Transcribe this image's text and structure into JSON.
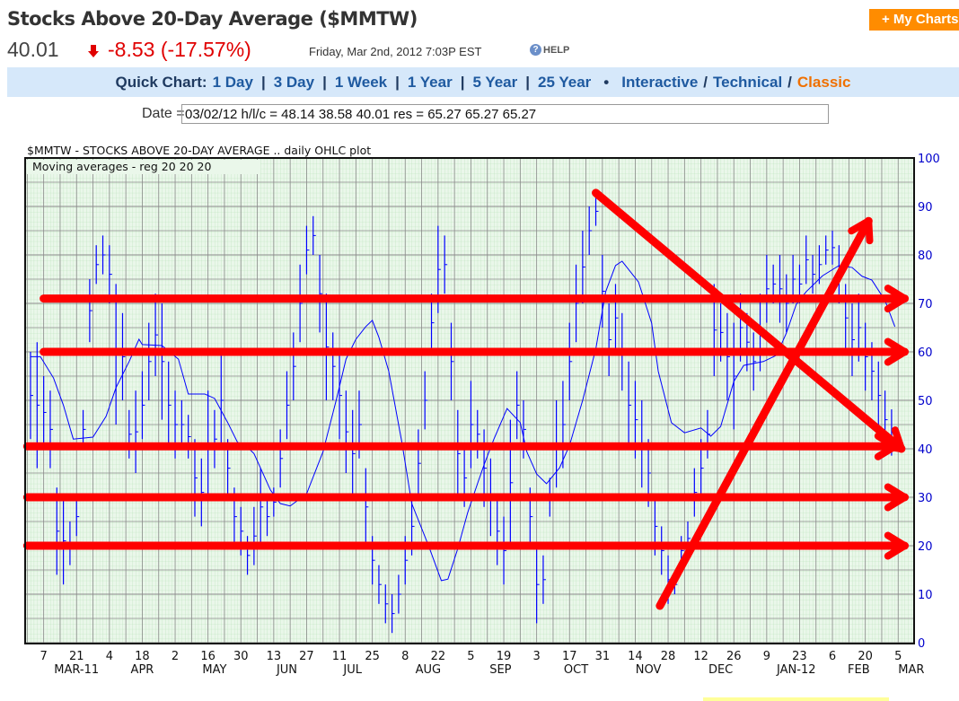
{
  "header": {
    "title": "Stocks Above 20-Day Average ($MMTW)",
    "my_chart_label": "+ My Charts"
  },
  "quote": {
    "price": "40.01",
    "change": "-8.53 (-17.57%)",
    "datetime": "Friday, Mar 2nd, 2012 7:03P EST",
    "help_label": "HELP",
    "down_color": "#e00000"
  },
  "quick_chart": {
    "label": "Quick Chart:",
    "links": [
      "1 Day",
      "3 Day",
      "1 Week",
      "1 Year",
      "5 Year",
      "25 Year"
    ],
    "bullet": "•",
    "styles": [
      "Interactive",
      "Technical",
      "Classic"
    ],
    "active_style": "Classic"
  },
  "date_field": {
    "label": "Date =",
    "value": "03/02/12 h/l/c = 48.14 38.58 40.01 res = 65.27 65.27 65.27"
  },
  "chart_data": {
    "type": "ohlc",
    "title": "$MMTW - STOCKS ABOVE 20-DAY AVERAGE .. daily OHLC plot",
    "subtitle": "Moving averages - reg   20  20  20",
    "x_unit": "weekday index from Mar 1 2011",
    "ylim": [
      0,
      100
    ],
    "yticks": [
      0,
      10,
      20,
      30,
      40,
      50,
      60,
      70,
      80,
      90,
      100
    ],
    "xticks": [
      {
        "x": 4,
        "label": "7"
      },
      {
        "x": 14,
        "label": "21"
      },
      {
        "x": 24,
        "label": "4"
      },
      {
        "x": 34,
        "label": "18"
      },
      {
        "x": 44,
        "label": "2"
      },
      {
        "x": 54,
        "label": "16"
      },
      {
        "x": 64,
        "label": "30"
      },
      {
        "x": 74,
        "label": "13"
      },
      {
        "x": 84,
        "label": "27"
      },
      {
        "x": 94,
        "label": "11"
      },
      {
        "x": 104,
        "label": "25"
      },
      {
        "x": 114,
        "label": "8"
      },
      {
        "x": 124,
        "label": "22"
      },
      {
        "x": 134,
        "label": "5"
      },
      {
        "x": 144,
        "label": "19"
      },
      {
        "x": 154,
        "label": "3"
      },
      {
        "x": 164,
        "label": "17"
      },
      {
        "x": 174,
        "label": "31"
      },
      {
        "x": 184,
        "label": "14"
      },
      {
        "x": 194,
        "label": "28"
      },
      {
        "x": 204,
        "label": "12"
      },
      {
        "x": 214,
        "label": "26"
      },
      {
        "x": 224,
        "label": "9"
      },
      {
        "x": 234,
        "label": "23"
      },
      {
        "x": 244,
        "label": "6"
      },
      {
        "x": 254,
        "label": "20"
      },
      {
        "x": 264,
        "label": "5"
      }
    ],
    "month_labels": [
      {
        "x": 14,
        "label": "MAR-11"
      },
      {
        "x": 34,
        "label": "APR"
      },
      {
        "x": 56,
        "label": "MAY"
      },
      {
        "x": 78,
        "label": "JUN"
      },
      {
        "x": 98,
        "label": "JUL"
      },
      {
        "x": 121,
        "label": "AUG"
      },
      {
        "x": 143,
        "label": "SEP"
      },
      {
        "x": 166,
        "label": "OCT"
      },
      {
        "x": 188,
        "label": "NOV"
      },
      {
        "x": 210,
        "label": "DEC"
      },
      {
        "x": 233,
        "label": "JAN-12"
      },
      {
        "x": 252,
        "label": "FEB"
      },
      {
        "x": 268,
        "label": "MAR"
      }
    ],
    "bars": [
      [
        0,
        60,
        42
      ],
      [
        2,
        62,
        36
      ],
      [
        4,
        55,
        40
      ],
      [
        6,
        52,
        36
      ],
      [
        8,
        32,
        14
      ],
      [
        10,
        30,
        12
      ],
      [
        12,
        25,
        16
      ],
      [
        14,
        30,
        22
      ],
      [
        16,
        48,
        40
      ],
      [
        18,
        75,
        62
      ],
      [
        20,
        82,
        74
      ],
      [
        22,
        84,
        76
      ],
      [
        24,
        82,
        70
      ],
      [
        26,
        74,
        45
      ],
      [
        28,
        68,
        50
      ],
      [
        30,
        48,
        38
      ],
      [
        32,
        52,
        35
      ],
      [
        34,
        56,
        42
      ],
      [
        36,
        66,
        50
      ],
      [
        38,
        72,
        55
      ],
      [
        40,
        70,
        46
      ],
      [
        42,
        58,
        40
      ],
      [
        44,
        52,
        38
      ],
      [
        46,
        50,
        40
      ],
      [
        48,
        47,
        38
      ],
      [
        50,
        42,
        26
      ],
      [
        52,
        38,
        24
      ],
      [
        54,
        52,
        30
      ],
      [
        56,
        48,
        36
      ],
      [
        58,
        60,
        40
      ],
      [
        60,
        42,
        30
      ],
      [
        62,
        32,
        20
      ],
      [
        64,
        28,
        18
      ],
      [
        66,
        22,
        14
      ],
      [
        68,
        28,
        16
      ],
      [
        70,
        36,
        20
      ],
      [
        72,
        30,
        22
      ],
      [
        74,
        32,
        26
      ],
      [
        76,
        44,
        32
      ],
      [
        78,
        56,
        42
      ],
      [
        80,
        64,
        50
      ],
      [
        82,
        78,
        62
      ],
      [
        84,
        86,
        76
      ],
      [
        86,
        88,
        80
      ],
      [
        88,
        80,
        64
      ],
      [
        90,
        72,
        50
      ],
      [
        92,
        64,
        50
      ],
      [
        94,
        60,
        42
      ],
      [
        96,
        52,
        35
      ],
      [
        98,
        48,
        30
      ],
      [
        100,
        52,
        38
      ],
      [
        102,
        36,
        20
      ],
      [
        104,
        22,
        12
      ],
      [
        106,
        16,
        8
      ],
      [
        108,
        12,
        4
      ],
      [
        110,
        10,
        2
      ],
      [
        112,
        14,
        6
      ],
      [
        114,
        22,
        12
      ],
      [
        116,
        30,
        18
      ],
      [
        118,
        44,
        30
      ],
      [
        120,
        56,
        44
      ],
      [
        122,
        72,
        60
      ],
      [
        124,
        86,
        68
      ],
      [
        126,
        84,
        72
      ],
      [
        128,
        66,
        50
      ],
      [
        130,
        48,
        30
      ],
      [
        132,
        40,
        28
      ],
      [
        134,
        54,
        36
      ],
      [
        136,
        48,
        38
      ],
      [
        138,
        44,
        28
      ],
      [
        140,
        38,
        22
      ],
      [
        142,
        30,
        16
      ],
      [
        144,
        26,
        12
      ],
      [
        146,
        46,
        20
      ],
      [
        148,
        56,
        42
      ],
      [
        150,
        50,
        38
      ],
      [
        152,
        32,
        20
      ],
      [
        154,
        20,
        4
      ],
      [
        156,
        18,
        8
      ],
      [
        158,
        34,
        26
      ],
      [
        160,
        50,
        32
      ],
      [
        162,
        54,
        36
      ],
      [
        164,
        66,
        50
      ],
      [
        166,
        78,
        62
      ],
      [
        168,
        85,
        70
      ],
      [
        170,
        90,
        80
      ],
      [
        172,
        92,
        86
      ],
      [
        174,
        80,
        65
      ],
      [
        176,
        70,
        55
      ],
      [
        178,
        74,
        60
      ],
      [
        180,
        68,
        52
      ],
      [
        182,
        58,
        40
      ],
      [
        184,
        54,
        38
      ],
      [
        186,
        50,
        32
      ],
      [
        188,
        42,
        28
      ],
      [
        190,
        30,
        18
      ],
      [
        192,
        24,
        14
      ],
      [
        194,
        18,
        8
      ],
      [
        196,
        14,
        10
      ],
      [
        198,
        22,
        16
      ],
      [
        200,
        25,
        18
      ],
      [
        202,
        36,
        26
      ],
      [
        204,
        42,
        30
      ],
      [
        206,
        48,
        38
      ],
      [
        208,
        74,
        55
      ],
      [
        210,
        70,
        58
      ],
      [
        212,
        68,
        50
      ],
      [
        214,
        66,
        44
      ],
      [
        216,
        72,
        58
      ],
      [
        218,
        68,
        56
      ],
      [
        220,
        64,
        52
      ],
      [
        222,
        72,
        56
      ],
      [
        224,
        80,
        66
      ],
      [
        226,
        78,
        70
      ],
      [
        228,
        80,
        66
      ],
      [
        230,
        76,
        64
      ],
      [
        232,
        80,
        70
      ],
      [
        234,
        78,
        70
      ],
      [
        236,
        84,
        74
      ],
      [
        238,
        80,
        72
      ],
      [
        240,
        82,
        74
      ],
      [
        242,
        84,
        78
      ],
      [
        244,
        85,
        78
      ],
      [
        246,
        82,
        70
      ],
      [
        248,
        74,
        60
      ],
      [
        250,
        70,
        55
      ],
      [
        252,
        72,
        58
      ],
      [
        254,
        66,
        52
      ],
      [
        256,
        62,
        50
      ],
      [
        258,
        58,
        44
      ],
      [
        260,
        52,
        40
      ],
      [
        262,
        48.14,
        38.58
      ]
    ],
    "moving_average": [
      [
        0,
        59
      ],
      [
        3,
        59
      ],
      [
        7,
        54.6
      ],
      [
        10,
        49
      ],
      [
        13,
        42
      ],
      [
        19,
        42.4
      ],
      [
        23,
        46.7
      ],
      [
        26,
        52.6
      ],
      [
        30,
        58
      ],
      [
        33,
        62.6
      ],
      [
        34,
        61.5
      ],
      [
        40,
        61.3
      ],
      [
        45,
        58.5
      ],
      [
        48,
        51.3
      ],
      [
        53,
        51.3
      ],
      [
        56,
        50.4
      ],
      [
        60,
        45.4
      ],
      [
        63,
        41.3
      ],
      [
        65,
        41
      ],
      [
        68,
        39
      ],
      [
        73,
        31.5
      ],
      [
        76,
        28.7
      ],
      [
        79,
        28.2
      ],
      [
        84,
        30.7
      ],
      [
        89,
        39.4
      ],
      [
        93,
        50
      ],
      [
        96,
        58.5
      ],
      [
        99,
        62.6
      ],
      [
        102,
        65.2
      ],
      [
        104,
        66.5
      ],
      [
        106,
        63
      ],
      [
        109,
        56
      ],
      [
        113,
        41.3
      ],
      [
        116,
        28.7
      ],
      [
        121,
        20.2
      ],
      [
        125,
        12.8
      ],
      [
        127,
        13.1
      ],
      [
        130,
        19.4
      ],
      [
        133,
        26.8
      ],
      [
        136,
        32.8
      ],
      [
        138,
        36.7
      ],
      [
        141,
        42
      ],
      [
        145,
        48.3
      ],
      [
        149,
        45.4
      ],
      [
        151,
        39.4
      ],
      [
        154,
        34.8
      ],
      [
        157,
        32.8
      ],
      [
        161,
        36.1
      ],
      [
        164,
        40.7
      ],
      [
        168,
        50
      ],
      [
        172,
        60.6
      ],
      [
        175,
        72.4
      ],
      [
        178,
        77.8
      ],
      [
        180,
        78.7
      ],
      [
        185,
        74.4
      ],
      [
        189,
        65.9
      ],
      [
        191,
        56
      ],
      [
        195,
        45.4
      ],
      [
        199,
        43.3
      ],
      [
        204,
        44.3
      ],
      [
        207,
        42.6
      ],
      [
        210,
        44.6
      ],
      [
        214,
        53.9
      ],
      [
        217,
        57.2
      ],
      [
        223,
        58
      ],
      [
        227,
        59.3
      ],
      [
        230,
        63.9
      ],
      [
        233,
        69.8
      ],
      [
        236,
        72.4
      ],
      [
        241,
        75.7
      ],
      [
        246,
        77.8
      ],
      [
        250,
        77.4
      ],
      [
        253,
        75.6
      ],
      [
        256,
        74.8
      ],
      [
        260,
        70.6
      ],
      [
        263,
        65.2
      ]
    ],
    "annotations": {
      "color": "#ff0000",
      "horizontal_arrows": [
        {
          "level": 71,
          "from": 4,
          "to": 266
        },
        {
          "level": 60,
          "from": 4,
          "to": 266
        },
        {
          "level": 40.5,
          "from": -1,
          "to": 263
        },
        {
          "level": 30,
          "from": -1,
          "to": 266
        },
        {
          "level": 20,
          "from": -1,
          "to": 266
        }
      ],
      "diagonal_arrows": [
        {
          "from": [
            172,
            92.8
          ],
          "to": [
            265,
            40
          ]
        },
        {
          "from": [
            191.5,
            7.6
          ],
          "to": [
            255,
            87
          ]
        }
      ]
    },
    "colors": {
      "bars": "#0000ff",
      "ma": "#0000ff",
      "grid_minor": "#b8e6b8",
      "grid_major": "#888888",
      "background": "#e6f5e6"
    }
  }
}
